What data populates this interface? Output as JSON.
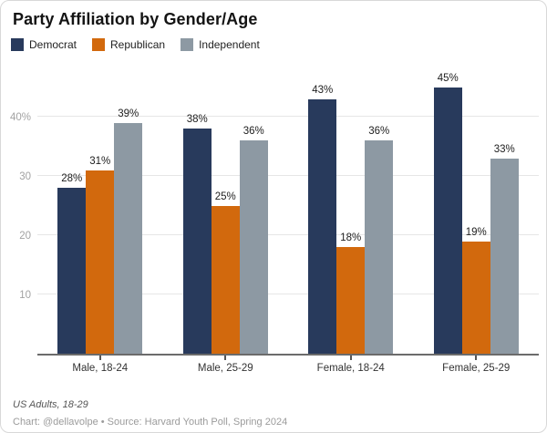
{
  "header": {
    "title": "Party Affiliation by Gender/Age"
  },
  "chart_data": {
    "type": "bar",
    "title": "Party Affiliation by Gender/Age",
    "categories": [
      "Male, 18-24",
      "Male, 25-29",
      "Female, 18-24",
      "Female, 25-29"
    ],
    "series": [
      {
        "name": "Democrat",
        "color": "#283a5c",
        "values": [
          28,
          38,
          43,
          45
        ]
      },
      {
        "name": "Republican",
        "color": "#d2690d",
        "values": [
          31,
          25,
          18,
          19
        ]
      },
      {
        "name": "Independent",
        "color": "#8d99a3",
        "values": [
          39,
          36,
          36,
          33
        ]
      }
    ],
    "value_suffix": "%",
    "y_ticks": [
      {
        "value": 10,
        "label": "10"
      },
      {
        "value": 20,
        "label": "20"
      },
      {
        "value": 30,
        "label": "30"
      },
      {
        "value": 40,
        "label": "40%"
      }
    ],
    "ylim": [
      0,
      45
    ],
    "grid": true,
    "legend_position": "top",
    "xlabel": "",
    "ylabel": ""
  },
  "footer": {
    "note": "US Adults, 18-29",
    "credit": "Chart: @dellavolpe • Source: Harvard Youth Poll, Spring 2024"
  }
}
